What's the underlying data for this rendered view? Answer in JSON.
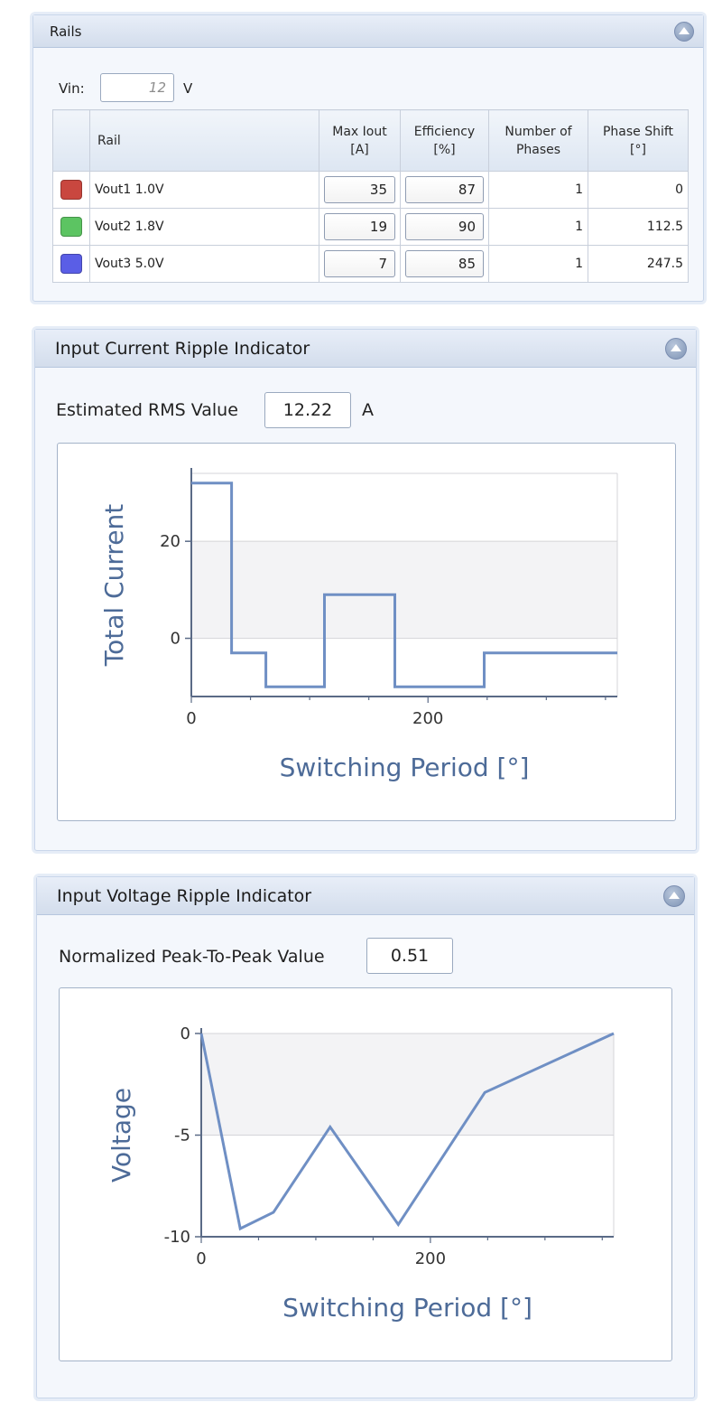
{
  "rails_panel": {
    "title": "Rails",
    "vin_label": "Vin:",
    "vin_value": "12",
    "vin_unit": "V",
    "columns": [
      "",
      "Rail",
      "Max Iout\n[A]",
      "Efficiency\n[%]",
      "Number of\nPhases",
      "Phase Shift\n[°]"
    ],
    "rows": [
      {
        "color": "#c9473f",
        "rail": "Vout1 1.0V",
        "max_iout": "35",
        "efficiency": "87",
        "phases": "1",
        "phase_shift": "0"
      },
      {
        "color": "#5cc462",
        "rail": "Vout2 1.8V",
        "max_iout": "19",
        "efficiency": "90",
        "phases": "1",
        "phase_shift": "112.5"
      },
      {
        "color": "#5a5ee6",
        "rail": "Vout3 5.0V",
        "max_iout": "7",
        "efficiency": "85",
        "phases": "1",
        "phase_shift": "247.5"
      }
    ]
  },
  "current_panel": {
    "title": "Input Current Ripple Indicator",
    "rms_label": "Estimated RMS Value",
    "rms_value": "12.22",
    "rms_unit": "A"
  },
  "voltage_panel": {
    "title": "Input Voltage Ripple Indicator",
    "p2p_label": "Normalized Peak-To-Peak Value",
    "p2p_value": "0.51"
  },
  "colors": {
    "line": "#6f8fc4",
    "plot_shade": "#f3f3f5",
    "gridline": "#d4d4d8",
    "axis": "#5a6a86",
    "axis_label": "#4d6b98"
  },
  "chart_data": [
    {
      "type": "line",
      "step": true,
      "title": "",
      "xlabel": "Switching Period [°]",
      "ylabel": "Total Current",
      "xlim": [
        0,
        360
      ],
      "ylim": [
        -12,
        34
      ],
      "x_ticks": [
        0,
        200
      ],
      "y_ticks": [
        0,
        20
      ],
      "grid": true,
      "series": [
        {
          "x": [
            0,
            34,
            34,
            63,
            63,
            112.5,
            112.5,
            172,
            172,
            247.5,
            247.5,
            360
          ],
          "y": [
            32,
            32,
            -3,
            -3,
            -10,
            -10,
            9,
            9,
            -10,
            -10,
            -3,
            -3
          ]
        }
      ]
    },
    {
      "type": "line",
      "title": "",
      "xlabel": "Switching Period [°]",
      "ylabel": "Voltage",
      "xlim": [
        0,
        360
      ],
      "ylim": [
        -10,
        0
      ],
      "x_ticks": [
        0,
        200
      ],
      "y_ticks": [
        0,
        -5,
        -10
      ],
      "grid": true,
      "series": [
        {
          "x": [
            0,
            34,
            63,
            112.5,
            172,
            247.5,
            360
          ],
          "y": [
            0,
            -9.6,
            -8.8,
            -4.6,
            -9.4,
            -2.9,
            0
          ]
        }
      ]
    }
  ]
}
